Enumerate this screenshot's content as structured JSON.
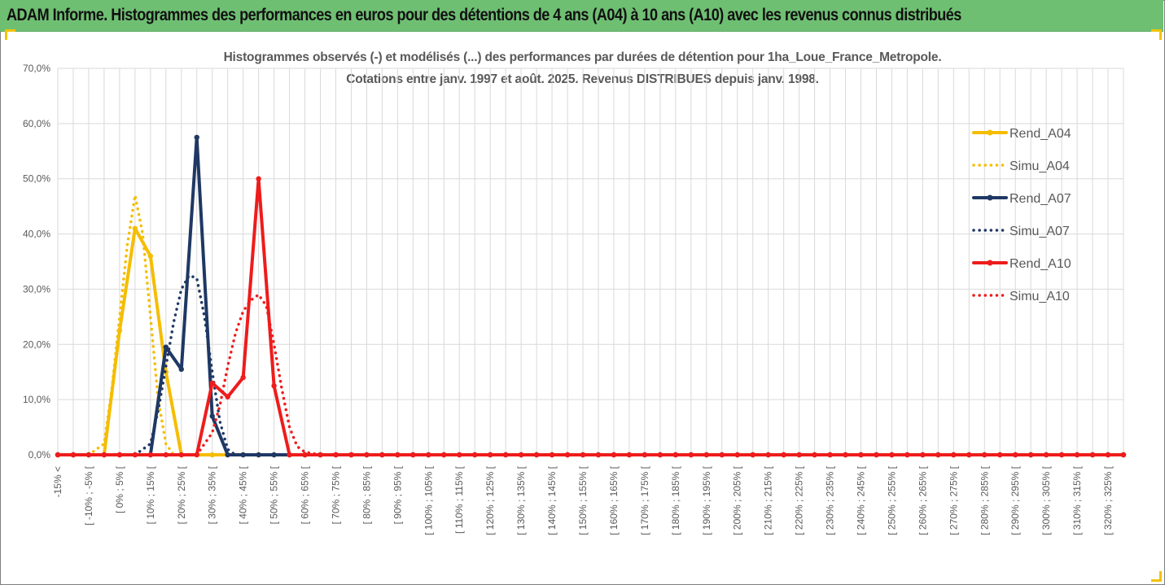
{
  "header": {
    "title": "ADAM Informe. Histogrammes des performances en euros pour des détentions de 4 ans (A04) à 10 ans (A10) avec les revenus connus distribués",
    "background": "#6fbf73"
  },
  "chart_data": {
    "type": "line",
    "title_line1": "Histogrammes observés (-) et modélisés (...) des performances par durées de détention pour 1ha_Loue_France_Metropole.",
    "title_line2": "Cotations entre janv. 1997 et août. 2025. Revenus DISTRIBUES depuis janv. 1998.",
    "ylim": [
      0,
      70
    ],
    "y_ticks": [
      "0,0%",
      "10,0%",
      "20,0%",
      "30,0%",
      "40,0%",
      "50,0%",
      "60,0%",
      "70,0%"
    ],
    "y_tick_values": [
      0,
      10,
      20,
      30,
      40,
      50,
      60,
      70
    ],
    "grid": true,
    "legend_position": "top-right",
    "x_labels": [
      "-15% <",
      "[ -10% ; -5% [",
      "[ 0% ; 5% [",
      "[ 10% ; 15% [",
      "[ 20% ; 25% [",
      "[ 30% ; 35% [",
      "[ 40% ; 45% [",
      "[ 50% ; 55% [",
      "[ 60% ; 65% [",
      "[ 70% ; 75% [",
      "[ 80% ; 85% [",
      "[ 90% ; 95% [",
      "[ 100% ; 105% [",
      "[ 110% ; 115% [",
      "[ 120% ; 125% [",
      "[ 130% ; 135% [",
      "[ 140% ; 145% [",
      "[ 150% ; 155% [",
      "[ 160% ; 165% [",
      "[ 170% ; 175% [",
      "[ 180% ; 185% [",
      "[ 190% ; 195% [",
      "[ 200% ; 205% [",
      "[ 210% ; 215% [",
      "[ 220% ; 225% [",
      "[ 230% ; 235% [",
      "[ 240% ; 245% [",
      "[ 250% ; 255% [",
      "[ 260% ; 265% [",
      "[ 270% ; 275% [",
      "[ 280% ; 285% [",
      "[ 290% ; 295% [",
      "[ 300% ; 305% [",
      "[ 310% ; 315% [",
      "[ 320% ; 325% ["
    ],
    "x_tick_count": 70,
    "series": [
      {
        "name": "Rend_A04",
        "color": "#f5bd00",
        "style": "solid",
        "markers": true,
        "points": [
          [
            3,
            0
          ],
          [
            4,
            22.5
          ],
          [
            5,
            41
          ],
          [
            6,
            36
          ],
          [
            7,
            15
          ],
          [
            8,
            0
          ],
          [
            9,
            0
          ],
          [
            10,
            0
          ],
          [
            11,
            0
          ],
          [
            12,
            0
          ]
        ]
      },
      {
        "name": "Simu_A04",
        "color": "#f5bd00",
        "style": "dotted",
        "markers": false,
        "points": [
          [
            2,
            0
          ],
          [
            3,
            2
          ],
          [
            3.5,
            12
          ],
          [
            4,
            25
          ],
          [
            4.5,
            38
          ],
          [
            5,
            47
          ],
          [
            5.5,
            40
          ],
          [
            6,
            25
          ],
          [
            6.5,
            10
          ],
          [
            7,
            2
          ],
          [
            7.5,
            0
          ]
        ]
      },
      {
        "name": "Rend_A07",
        "color": "#1f3864",
        "style": "solid",
        "markers": true,
        "points": [
          [
            6,
            0
          ],
          [
            7,
            19.5
          ],
          [
            8,
            15.5
          ],
          [
            9,
            57.5
          ],
          [
            10,
            7
          ],
          [
            11,
            0
          ],
          [
            12,
            0
          ],
          [
            13,
            0
          ],
          [
            14,
            0
          ],
          [
            15,
            0
          ]
        ]
      },
      {
        "name": "Simu_A07",
        "color": "#1f3864",
        "style": "dotted",
        "markers": false,
        "points": [
          [
            5,
            0
          ],
          [
            6,
            2
          ],
          [
            6.5,
            8
          ],
          [
            7,
            16
          ],
          [
            7.5,
            24
          ],
          [
            8,
            30
          ],
          [
            8.5,
            32.5
          ],
          [
            9,
            32
          ],
          [
            9.5,
            25
          ],
          [
            10,
            15
          ],
          [
            10.5,
            6
          ],
          [
            11,
            1
          ],
          [
            11.5,
            0
          ]
        ]
      },
      {
        "name": "Rend_A10",
        "color": "#ee1c1c",
        "style": "solid",
        "markers": true,
        "points": [
          [
            9,
            0
          ],
          [
            10,
            13
          ],
          [
            11,
            10.5
          ],
          [
            12,
            14
          ],
          [
            13,
            50
          ],
          [
            14,
            12.5
          ],
          [
            15,
            0
          ]
        ]
      },
      {
        "name": "Simu_A10",
        "color": "#ee1c1c",
        "style": "dotted",
        "markers": false,
        "points": [
          [
            9,
            0
          ],
          [
            10,
            4
          ],
          [
            10.5,
            9
          ],
          [
            11,
            16
          ],
          [
            11.5,
            22
          ],
          [
            12,
            26
          ],
          [
            12.5,
            28
          ],
          [
            13,
            29
          ],
          [
            13.5,
            27
          ],
          [
            14,
            20
          ],
          [
            14.5,
            12
          ],
          [
            15,
            5
          ],
          [
            15.5,
            1.5
          ],
          [
            16,
            0.5
          ],
          [
            17,
            0
          ]
        ]
      }
    ]
  }
}
